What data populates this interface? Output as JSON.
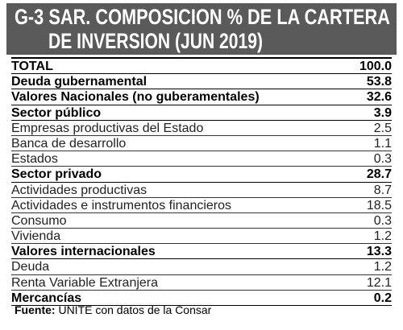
{
  "header": {
    "title": [
      "G-3 SAR. COMPOSICION % DE LA CARTERA",
      "DE INVERSION (JUN 2019)"
    ]
  },
  "table": {
    "rows": [
      {
        "label": "TOTAL",
        "value": "100.0",
        "bold": true
      },
      {
        "label": "Deuda gubernamental",
        "value": "53.8",
        "bold": true
      },
      {
        "label": "Valores Nacionales (no guberamentales)",
        "value": "32.6",
        "bold": true
      },
      {
        "label": "Sector público",
        "value": "3.9",
        "bold": true
      },
      {
        "label": "Empresas productivas del Estado",
        "value": "2.5",
        "bold": false
      },
      {
        "label": "Banca de desarrollo",
        "value": "1.1",
        "bold": false
      },
      {
        "label": "Estados",
        "value": "0.3",
        "bold": false
      },
      {
        "label": "Sector privado",
        "value": "28.7",
        "bold": true
      },
      {
        "label": "Actividades productivas",
        "value": "8.7",
        "bold": false
      },
      {
        "label": "Actividades e instrumentos financieros",
        "value": "18.5",
        "bold": false
      },
      {
        "label": "Consumo",
        "value": "0.3",
        "bold": false
      },
      {
        "label": "Vivienda",
        "value": "1.2",
        "bold": false
      },
      {
        "label": "Valores internacionales",
        "value": "13.3",
        "bold": true
      },
      {
        "label": "Deuda",
        "value": "1.2",
        "bold": false
      },
      {
        "label": "Renta Variable Extranjera",
        "value": "12.1",
        "bold": false
      },
      {
        "label": "Mercancías",
        "value": "0.2",
        "bold": true
      }
    ]
  },
  "footer": {
    "source_label": "Fuente:",
    "source": "UNITE con datos de la Consar"
  }
}
